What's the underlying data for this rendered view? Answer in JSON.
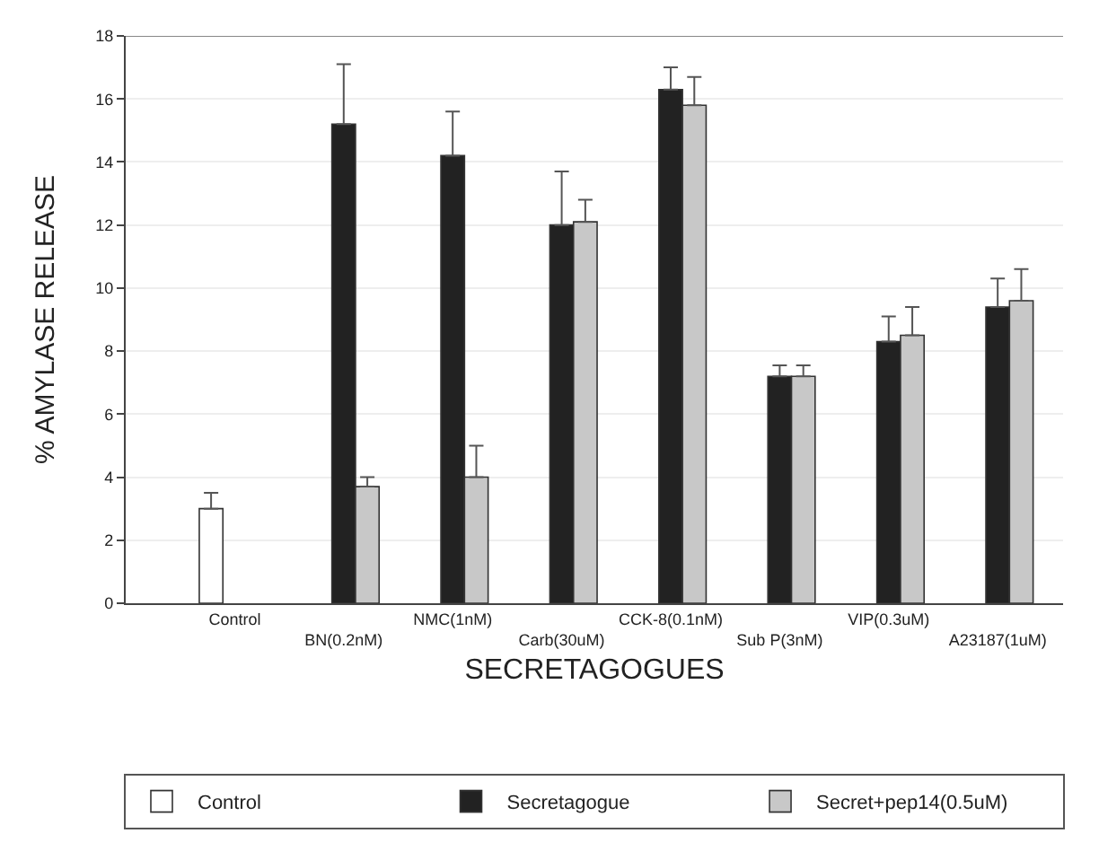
{
  "chart_data": {
    "type": "bar",
    "xlabel": "SECRETAGOGUES",
    "ylabel": "% AMYLASE RELEASE",
    "categories": [
      "Control",
      "BN(0.2nM)",
      "NMC(1nM)",
      "Carb(30uM)",
      "CCK-8(0.1nM)",
      "Sub P(3nM)",
      "VIP(0.3uM)",
      "A23187(1uM)"
    ],
    "series": [
      {
        "name": "Control",
        "color": "#ffffff",
        "values": [
          3.0,
          null,
          null,
          null,
          null,
          null,
          null,
          null
        ],
        "errors": [
          [
            3.0,
            3.5
          ],
          null,
          null,
          null,
          null,
          null,
          null,
          null
        ]
      },
      {
        "name": "Secretagogue",
        "color": "#222222",
        "values": [
          null,
          15.2,
          14.2,
          12.0,
          16.3,
          7.2,
          8.3,
          9.4
        ],
        "errors": [
          null,
          [
            15.2,
            17.1
          ],
          [
            14.2,
            15.6
          ],
          [
            12.0,
            13.7
          ],
          [
            16.3,
            17.0
          ],
          [
            7.2,
            7.55
          ],
          [
            8.3,
            9.1
          ],
          [
            9.4,
            10.3
          ]
        ]
      },
      {
        "name": "Secret+pep14(0.5uM)",
        "color": "#c8c8c8",
        "values": [
          null,
          3.7,
          4.0,
          12.1,
          15.8,
          7.2,
          8.5,
          9.6
        ],
        "errors": [
          null,
          [
            3.7,
            4.0
          ],
          [
            4.0,
            5.0
          ],
          [
            12.1,
            12.8
          ],
          [
            15.8,
            16.7
          ],
          [
            7.2,
            7.55
          ],
          [
            8.5,
            9.4
          ],
          [
            9.6,
            10.6
          ]
        ]
      }
    ],
    "ylim": [
      0,
      18
    ],
    "yticks": [
      0,
      2,
      4,
      6,
      8,
      10,
      12,
      14,
      16,
      18
    ],
    "grid": "y",
    "legend": "bottom"
  }
}
